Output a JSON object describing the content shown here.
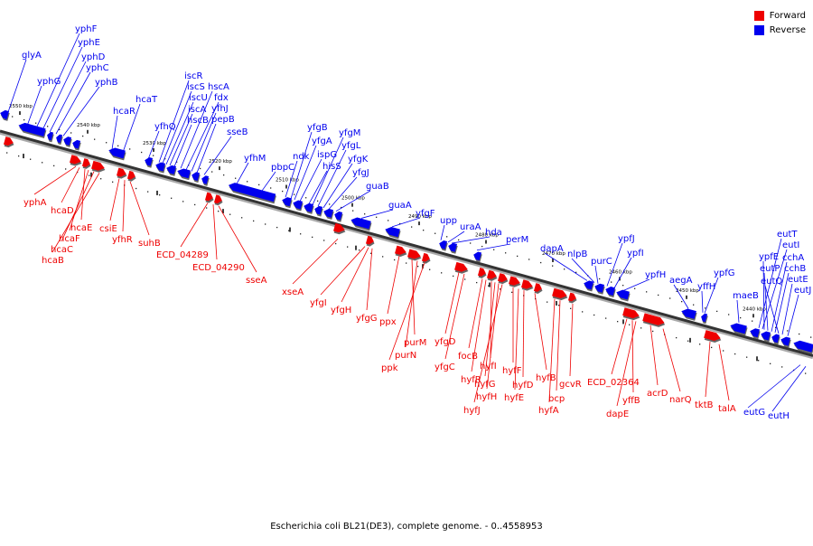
{
  "legend": {
    "items": [
      {
        "label": "Forward",
        "color": "#ee0000"
      },
      {
        "label": "Reverse",
        "color": "#0000ee"
      }
    ]
  },
  "caption": "Escherichia coli BL21(DE3), complete genome. - 0..4558953",
  "colors": {
    "forward": "#ee0000",
    "reverse": "#0000ee",
    "axis": "#333333"
  },
  "ticks": [
    "2550 kbp",
    "2540 kbp",
    "2530 kbp",
    "2520 kbp",
    "2510 kbp",
    "2500 kbp",
    "2490 kbp",
    "2480 kbp",
    "2470 kbp",
    "2460 kbp",
    "2450 kbp",
    "2440 kbp"
  ],
  "reverse_genes": [
    "glyA",
    "yphG",
    "yphF",
    "yphE",
    "yphD",
    "yphC",
    "yphB",
    "hcaR",
    "hcaT",
    "yfhQ",
    "iscR",
    "iscS",
    "iscU",
    "iscA",
    "hscB",
    "hscA",
    "fdx",
    "yfhJ",
    "pepB",
    "sseB",
    "yfhM",
    "pbpC",
    "ndk",
    "yfgB",
    "yfgA",
    "ispG",
    "hisS",
    "yfgM",
    "yfgL",
    "yfgK",
    "yfgJ",
    "guaB",
    "guaA",
    "yfgF",
    "upp",
    "uraA",
    "hda",
    "perM",
    "dapA",
    "nlpB",
    "purC",
    "ypfJ",
    "ypfI",
    "ypfH",
    "aegA",
    "yffH",
    "ypfG",
    "maeB",
    "eutT",
    "eutI",
    "ypfE",
    "eutP",
    "cchA",
    "cchB",
    "eutQ",
    "eutE",
    "eutJ",
    "eutG",
    "eutH"
  ],
  "forward_genes": [
    "yphA",
    "hcaD",
    "hcaE",
    "hcaF",
    "hcaC",
    "hcaB",
    "csiE",
    "yfhR",
    "suhB",
    "ECD_04289",
    "ECD_04290",
    "sseA",
    "xseA",
    "yfgI",
    "yfgH",
    "yfgG",
    "ppx",
    "purM",
    "purN",
    "ppk",
    "yfgD",
    "yfgC",
    "focB",
    "hyfR",
    "hyfI",
    "hyfG",
    "hyfH",
    "hyfJ",
    "hyfF",
    "hyfE",
    "hyfD",
    "hyfB",
    "hyfA",
    "bcp",
    "gcvR",
    "ECD_02364",
    "yffB",
    "dapE",
    "acrD",
    "narQ",
    "tktB",
    "talA"
  ]
}
